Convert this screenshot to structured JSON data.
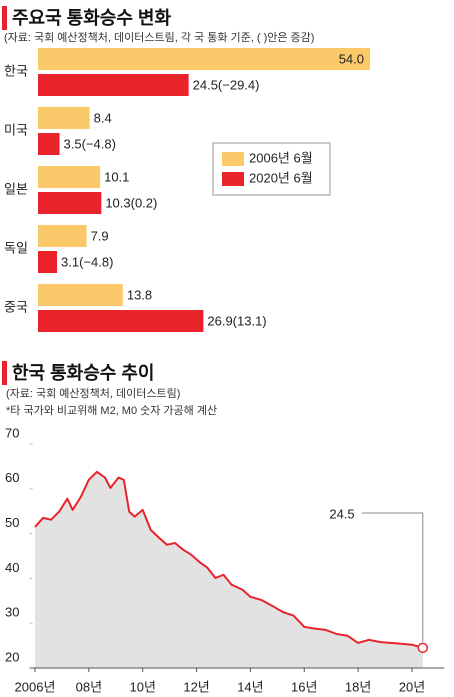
{
  "chart_data": [
    {
      "type": "bar",
      "orientation": "horizontal",
      "title": "주요국 통화승수 변화",
      "subtitle": "(자료: 국회 예산정책처, 데이터스트림, 각 국 통화 기준, ( )안은 증감)",
      "categories": [
        "한국",
        "미국",
        "일본",
        "독일",
        "중국"
      ],
      "series": [
        {
          "name": "2006년 6월",
          "color": "#fcc96a",
          "values": [
            54.0,
            8.4,
            10.1,
            7.9,
            13.8
          ],
          "value_labels": [
            "54.0",
            "8.4",
            "10.1",
            "7.9",
            "13.8"
          ]
        },
        {
          "name": "2020년 6월",
          "color": "#e8232b",
          "values": [
            24.5,
            3.5,
            10.3,
            3.1,
            26.9
          ],
          "value_labels": [
            "24.5(−29.4)",
            "3.5(−4.8)",
            "10.3(0.2)",
            "3.1(−4.8)",
            "26.9(13.1)"
          ]
        }
      ],
      "legend": "right"
    },
    {
      "type": "line",
      "title": "한국 통화승수 추이",
      "subtitle": "(자료: 국회 예산정책처, 데이터스트림)",
      "note": "*타 국가와 비교위해 M2, M0 숫자 가공해 계산",
      "x": [
        2006.0,
        2006.3,
        2006.6,
        2006.9,
        2007.2,
        2007.4,
        2007.7,
        2008.0,
        2008.3,
        2008.6,
        2008.8,
        2009.1,
        2009.3,
        2009.5,
        2009.7,
        2010.0,
        2010.3,
        2010.6,
        2010.9,
        2011.2,
        2011.5,
        2011.8,
        2012.1,
        2012.4,
        2012.7,
        2013.0,
        2013.3,
        2013.7,
        2014.0,
        2014.4,
        2014.8,
        2015.2,
        2015.6,
        2016.0,
        2016.4,
        2016.8,
        2017.2,
        2017.6,
        2018.0,
        2018.4,
        2018.8,
        2019.2,
        2019.6,
        2020.0,
        2020.4
      ],
      "values": [
        51.5,
        53.5,
        53.1,
        54.9,
        57.8,
        55.3,
        58.2,
        62.0,
        63.8,
        62.5,
        60.2,
        62.5,
        62.0,
        54.9,
        53.8,
        55.3,
        50.8,
        49.1,
        47.5,
        47.9,
        46.4,
        45.3,
        43.7,
        42.4,
        40.1,
        40.8,
        38.6,
        37.5,
        35.9,
        35.2,
        33.9,
        32.5,
        31.7,
        29.2,
        28.8,
        28.5,
        27.6,
        27.2,
        25.6,
        26.3,
        25.8,
        25.6,
        25.4,
        25.2,
        24.5
      ],
      "color": "#e8232b",
      "area_color": "#e2e2e2",
      "xlim": [
        2005.8,
        2021.2
      ],
      "ylim": [
        20,
        70
      ],
      "xticks": [
        {
          "value": 2006,
          "label": "2006년"
        },
        {
          "value": 2008,
          "label": "08년"
        },
        {
          "value": 2010,
          "label": "10년"
        },
        {
          "value": 2012,
          "label": "12년"
        },
        {
          "value": 2014,
          "label": "14년"
        },
        {
          "value": 2016,
          "label": "16년"
        },
        {
          "value": 2018,
          "label": "18년"
        },
        {
          "value": 2020,
          "label": "20년"
        }
      ],
      "yticks": [
        20,
        30,
        40,
        50,
        60,
        70
      ]
    }
  ]
}
